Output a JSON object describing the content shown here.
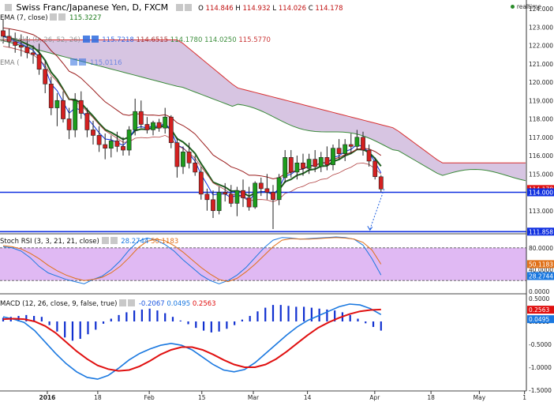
{
  "header": {
    "title": "Swiss Franc/Japanese Yen, D, FXCM",
    "ohlc": [
      {
        "label": "O",
        "value": "114.846"
      },
      {
        "label": "H",
        "value": "114.932"
      },
      {
        "label": "L",
        "value": "114.026"
      },
      {
        "label": "C",
        "value": "114.178"
      }
    ],
    "realtime": "realtime"
  },
  "indicators": {
    "ema7": {
      "label": "EMA (7, close)",
      "value": "115.3227"
    },
    "ichimoku": {
      "label": "Ichimoku (9, 26, 52, 26)",
      "values": [
        "115.7218",
        "114.6515",
        "114.1780",
        "114.0250",
        "115.5770"
      ]
    },
    "ema_second": {
      "label": "EMA (",
      "value": "115.0116"
    },
    "stoch": {
      "label": "Stoch RSI (3, 3, 21, 21, close)",
      "values": [
        "28.2744",
        "50.1183"
      ]
    },
    "macd": {
      "label": "MACD (12, 26, close, 9, false, true)",
      "values": [
        "-0.2067",
        "0.0495",
        "0.2563"
      ]
    }
  },
  "colors": {
    "up": "#1c9c1c",
    "down": "#d42020",
    "cloud": "#c9b2d8",
    "kijun": "#9b1d1d",
    "blue_line": "#0a2fe0",
    "stoch_band": "#d8a8f0",
    "macd_red": "#e01010",
    "macd_blue": "#1a78e0"
  },
  "chart_data": [
    {
      "type": "candlestick",
      "title": "Swiss Franc/Japanese Yen, D, FXCM",
      "ylim": [
        112.0,
        124.0
      ],
      "y_ticks": [
        "124.000",
        "123.000",
        "122.000",
        "121.000",
        "120.000",
        "119.000",
        "118.000",
        "117.000",
        "116.000",
        "115.000",
        "113.000"
      ],
      "price_labels": [
        {
          "value": 114.178,
          "text": "114.178",
          "color": "#e01010"
        },
        {
          "value": 114.0,
          "text": "114.000",
          "color": "#1030e0"
        },
        {
          "value": 111.858,
          "text": "111.858",
          "color": "#1030e0"
        }
      ],
      "horizontal_lines": [
        114.0,
        111.858
      ],
      "candles": [
        {
          "o": 122.8,
          "h": 123.4,
          "l": 122.1,
          "c": 122.5
        },
        {
          "o": 122.5,
          "h": 122.9,
          "l": 121.9,
          "c": 122.2
        },
        {
          "o": 122.2,
          "h": 122.7,
          "l": 121.6,
          "c": 122.0
        },
        {
          "o": 122.0,
          "h": 122.6,
          "l": 121.4,
          "c": 121.9
        },
        {
          "o": 121.9,
          "h": 122.5,
          "l": 121.3,
          "c": 121.6
        },
        {
          "o": 121.6,
          "h": 122.0,
          "l": 121.0,
          "c": 121.5
        },
        {
          "o": 121.5,
          "h": 122.1,
          "l": 120.4,
          "c": 120.7
        },
        {
          "o": 120.7,
          "h": 121.2,
          "l": 119.4,
          "c": 119.9
        },
        {
          "o": 119.9,
          "h": 120.3,
          "l": 118.2,
          "c": 118.6
        },
        {
          "o": 118.6,
          "h": 119.4,
          "l": 117.6,
          "c": 119.0
        },
        {
          "o": 119.0,
          "h": 119.5,
          "l": 117.8,
          "c": 118.0
        },
        {
          "o": 118.0,
          "h": 118.6,
          "l": 116.9,
          "c": 117.4
        },
        {
          "o": 117.4,
          "h": 119.4,
          "l": 117.0,
          "c": 119.0
        },
        {
          "o": 119.0,
          "h": 119.5,
          "l": 118.0,
          "c": 118.3
        },
        {
          "o": 118.3,
          "h": 118.6,
          "l": 117.0,
          "c": 117.4
        },
        {
          "o": 117.4,
          "h": 117.9,
          "l": 116.6,
          "c": 117.1
        },
        {
          "o": 117.1,
          "h": 117.6,
          "l": 116.2,
          "c": 116.6
        },
        {
          "o": 116.6,
          "h": 117.2,
          "l": 115.8,
          "c": 116.4
        },
        {
          "o": 116.4,
          "h": 117.1,
          "l": 115.9,
          "c": 116.8
        },
        {
          "o": 116.8,
          "h": 117.3,
          "l": 116.2,
          "c": 116.5
        },
        {
          "o": 116.5,
          "h": 117.0,
          "l": 116.0,
          "c": 116.3
        },
        {
          "o": 116.3,
          "h": 117.6,
          "l": 116.0,
          "c": 117.4
        },
        {
          "o": 117.4,
          "h": 119.1,
          "l": 117.1,
          "c": 118.4
        },
        {
          "o": 118.4,
          "h": 119.0,
          "l": 117.5,
          "c": 117.7
        },
        {
          "o": 117.7,
          "h": 118.1,
          "l": 117.2,
          "c": 117.4
        },
        {
          "o": 117.4,
          "h": 117.9,
          "l": 117.1,
          "c": 117.8
        },
        {
          "o": 117.8,
          "h": 118.0,
          "l": 117.3,
          "c": 117.5
        },
        {
          "o": 117.5,
          "h": 118.6,
          "l": 117.2,
          "c": 118.1
        },
        {
          "o": 118.1,
          "h": 118.2,
          "l": 116.4,
          "c": 116.7
        },
        {
          "o": 116.7,
          "h": 117.0,
          "l": 114.8,
          "c": 115.4
        },
        {
          "o": 115.4,
          "h": 116.5,
          "l": 115.0,
          "c": 116.2
        },
        {
          "o": 116.2,
          "h": 116.7,
          "l": 115.3,
          "c": 115.6
        },
        {
          "o": 115.6,
          "h": 116.0,
          "l": 114.9,
          "c": 115.1
        },
        {
          "o": 115.1,
          "h": 115.4,
          "l": 113.6,
          "c": 113.9
        },
        {
          "o": 113.9,
          "h": 114.2,
          "l": 113.0,
          "c": 113.6
        },
        {
          "o": 113.6,
          "h": 114.1,
          "l": 112.6,
          "c": 113.0
        },
        {
          "o": 113.0,
          "h": 114.3,
          "l": 112.8,
          "c": 114.0
        },
        {
          "o": 114.0,
          "h": 114.5,
          "l": 113.5,
          "c": 113.9
        },
        {
          "o": 113.9,
          "h": 114.4,
          "l": 113.2,
          "c": 113.4
        },
        {
          "o": 113.4,
          "h": 114.3,
          "l": 112.7,
          "c": 114.1
        },
        {
          "o": 114.1,
          "h": 114.7,
          "l": 113.2,
          "c": 113.7
        },
        {
          "o": 113.7,
          "h": 114.3,
          "l": 113.0,
          "c": 113.2
        },
        {
          "o": 113.2,
          "h": 114.6,
          "l": 113.1,
          "c": 114.5
        },
        {
          "o": 114.5,
          "h": 114.8,
          "l": 113.8,
          "c": 114.2
        },
        {
          "o": 114.2,
          "h": 115.0,
          "l": 113.6,
          "c": 114.0
        },
        {
          "o": 114.0,
          "h": 114.4,
          "l": 112.0,
          "c": 113.6
        },
        {
          "o": 113.6,
          "h": 115.0,
          "l": 113.3,
          "c": 114.8
        },
        {
          "o": 114.8,
          "h": 116.3,
          "l": 114.5,
          "c": 115.9
        },
        {
          "o": 115.9,
          "h": 116.3,
          "l": 114.8,
          "c": 115.1
        },
        {
          "o": 115.1,
          "h": 116.0,
          "l": 114.7,
          "c": 115.6
        },
        {
          "o": 115.6,
          "h": 116.1,
          "l": 114.9,
          "c": 115.3
        },
        {
          "o": 115.3,
          "h": 116.1,
          "l": 115.0,
          "c": 115.8
        },
        {
          "o": 115.8,
          "h": 116.3,
          "l": 115.1,
          "c": 115.4
        },
        {
          "o": 115.4,
          "h": 116.2,
          "l": 115.1,
          "c": 115.9
        },
        {
          "o": 115.9,
          "h": 116.5,
          "l": 115.2,
          "c": 115.5
        },
        {
          "o": 115.5,
          "h": 116.6,
          "l": 115.2,
          "c": 116.4
        },
        {
          "o": 116.4,
          "h": 116.9,
          "l": 115.8,
          "c": 116.1
        },
        {
          "o": 116.1,
          "h": 116.9,
          "l": 115.7,
          "c": 116.6
        },
        {
          "o": 116.6,
          "h": 117.2,
          "l": 116.1,
          "c": 116.5
        },
        {
          "o": 116.5,
          "h": 117.4,
          "l": 116.3,
          "c": 117.0
        },
        {
          "o": 117.0,
          "h": 117.3,
          "l": 116.0,
          "c": 116.3
        },
        {
          "o": 116.3,
          "h": 116.6,
          "l": 115.4,
          "c": 115.7
        },
        {
          "o": 115.7,
          "h": 115.9,
          "l": 114.7,
          "c": 114.85
        },
        {
          "o": 114.846,
          "h": 114.932,
          "l": 114.026,
          "c": 114.178
        }
      ],
      "projection": {
        "from": 114.178,
        "to": 111.858
      }
    },
    {
      "type": "line",
      "title": "Stoch RSI (3, 3, 21, 21, close)",
      "ylim": [
        0,
        100
      ],
      "y_ticks": [
        "80.0000",
        "40.0000",
        "0.0000"
      ],
      "value_labels": [
        "28.2744",
        "50.1183"
      ],
      "band": [
        20,
        80
      ],
      "series": [
        {
          "values": [
            82,
            80,
            74,
            62,
            46,
            34,
            28,
            22,
            18,
            14,
            22,
            28,
            40,
            56,
            76,
            92,
            98,
            94,
            86,
            74,
            58,
            44,
            30,
            20,
            14,
            20,
            30,
            44,
            62,
            80,
            94,
            99,
            98,
            96,
            97,
            98,
            99,
            100,
            99,
            96,
            85,
            60,
            30
          ],
          "color": "#1a78e0"
        },
        {
          "values": [
            84,
            82,
            78,
            70,
            60,
            48,
            38,
            30,
            24,
            20,
            22,
            26,
            34,
            46,
            62,
            80,
            92,
            96,
            93,
            84,
            72,
            58,
            44,
            32,
            22,
            18,
            24,
            36,
            50,
            66,
            82,
            94,
            97,
            96,
            96,
            97,
            98,
            99,
            98,
            96,
            90,
            76,
            50
          ],
          "color": "#e07018"
        }
      ]
    },
    {
      "type": "bar+line",
      "title": "MACD (12, 26, close, 9, false, true)",
      "ylim": [
        -1.5,
        0.5
      ],
      "y_ticks": [
        "0.5000",
        "0.0000",
        "-0.5000",
        "-1.0000",
        "-1.5000"
      ],
      "value_labels": [
        "-0.2067",
        "0.0495",
        "0.2563"
      ],
      "histogram": [
        0.08,
        0.1,
        0.12,
        0.14,
        0.12,
        0.1,
        -0.08,
        -0.22,
        -0.35,
        -0.42,
        -0.38,
        -0.28,
        -0.18,
        -0.05,
        0.06,
        0.14,
        0.2,
        0.24,
        0.26,
        0.28,
        0.24,
        0.18,
        0.1,
        0.02,
        -0.06,
        -0.14,
        -0.2,
        -0.24,
        -0.22,
        -0.16,
        -0.08,
        0.04,
        0.12,
        0.22,
        0.3,
        0.36,
        0.36,
        0.34,
        0.32,
        0.32,
        0.3,
        0.28,
        0.26,
        0.24,
        0.2,
        0.14,
        0.06,
        -0.04,
        -0.12,
        -0.2
      ],
      "series": [
        {
          "name": "",
          "values": [
            0.1,
            0.05,
            -0.02,
            -0.2,
            -0.45,
            -0.7,
            -0.92,
            -1.1,
            -1.22,
            -1.26,
            -1.18,
            -1.02,
            -0.84,
            -0.7,
            -0.6,
            -0.52,
            -0.48,
            -0.52,
            -0.62,
            -0.78,
            -0.94,
            -1.06,
            -1.1,
            -1.05,
            -0.9,
            -0.7,
            -0.5,
            -0.3,
            -0.12,
            0.02,
            0.12,
            0.22,
            0.32,
            0.38,
            0.36,
            0.28,
            0.15
          ],
          "color": "#1a78e0"
        },
        {
          "name": "",
          "values": [
            0.05,
            0.06,
            0.05,
            0.0,
            -0.1,
            -0.25,
            -0.45,
            -0.65,
            -0.82,
            -0.96,
            -1.04,
            -1.08,
            -1.06,
            -0.98,
            -0.86,
            -0.72,
            -0.62,
            -0.56,
            -0.56,
            -0.62,
            -0.72,
            -0.84,
            -0.94,
            -1.0,
            -1.0,
            -0.94,
            -0.82,
            -0.66,
            -0.48,
            -0.3,
            -0.14,
            -0.02,
            0.08,
            0.16,
            0.22,
            0.25,
            0.26
          ],
          "color": "#e01010"
        }
      ]
    }
  ],
  "x_axis": {
    "labels": [
      {
        "text": "2016",
        "pos": 0.09,
        "bold": true
      },
      {
        "text": "18",
        "pos": 0.186
      },
      {
        "text": "Feb",
        "pos": 0.284
      },
      {
        "text": "15",
        "pos": 0.384
      },
      {
        "text": "Mar",
        "pos": 0.482
      },
      {
        "text": "14",
        "pos": 0.585
      },
      {
        "text": "Apr",
        "pos": 0.713
      },
      {
        "text": "18",
        "pos": 0.82
      },
      {
        "text": "May",
        "pos": 0.912
      },
      {
        "text": "1",
        "pos": 0.998
      }
    ]
  }
}
